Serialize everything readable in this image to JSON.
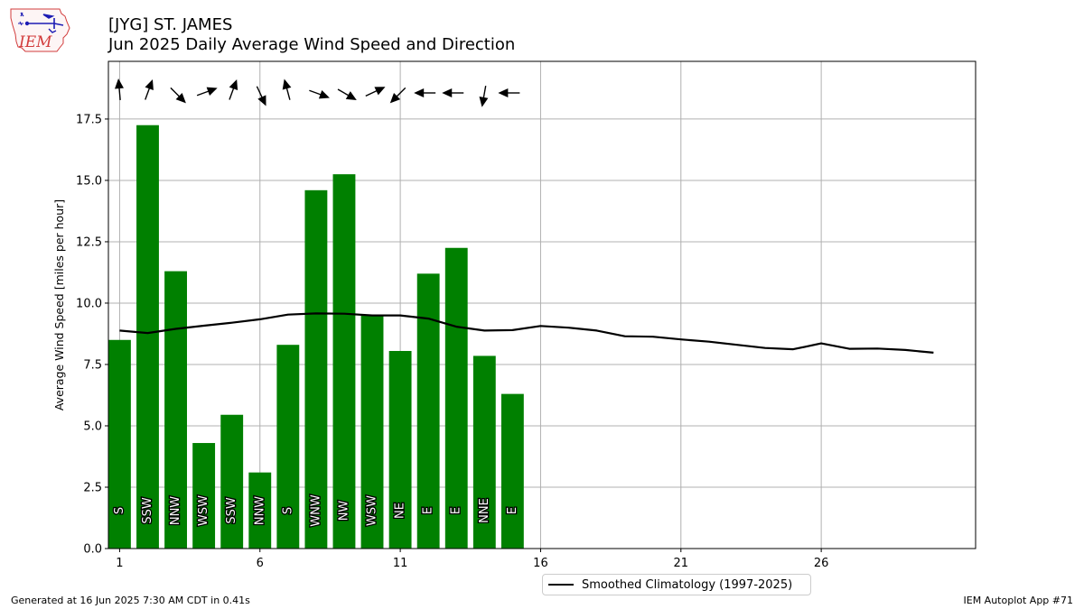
{
  "header": {
    "title_line1": "[JYG] ST. JAMES",
    "title_line2": "Jun 2025 Daily Average Wind Speed and Direction"
  },
  "logo": {
    "text": "IEM"
  },
  "footer": {
    "left": "Generated at 16 Jun 2025 7:30 AM CDT in 0.41s",
    "right": "IEM Autoplot App #71"
  },
  "legend": {
    "label": "Smoothed Climatology (1997-2025)"
  },
  "colors": {
    "bar": "#008000",
    "climatology_line": "#000000",
    "grid": "#b0b0b0"
  },
  "chart_data": {
    "type": "bar",
    "ylabel": "Average Wind Speed [miles per hour]",
    "xlabel": "",
    "xlim": [
      0.6,
      31.5
    ],
    "ylim": [
      0,
      19.85
    ],
    "xticks": [
      1,
      6,
      11,
      16,
      21,
      26
    ],
    "xtick_labels": [
      "1",
      "6",
      "11",
      "16",
      "21",
      "26"
    ],
    "yticks": [
      0,
      2.5,
      5,
      7.5,
      10,
      12.5,
      15,
      17.5
    ],
    "ytick_labels": [
      "0.0",
      "2.5",
      "5.0",
      "7.5",
      "10.0",
      "12.5",
      "15.0",
      "17.5"
    ],
    "grid": true,
    "legend_position": "below",
    "bars": {
      "days": [
        1,
        2,
        3,
        4,
        5,
        6,
        7,
        8,
        9,
        10,
        11,
        12,
        13,
        14,
        15
      ],
      "speeds": [
        8.5,
        17.25,
        11.3,
        4.3,
        5.45,
        3.1,
        8.3,
        14.6,
        15.25,
        9.5,
        8.05,
        11.2,
        12.25,
        7.85,
        6.3
      ],
      "direction_labels": [
        "S",
        "SSW",
        "NNW",
        "WSW",
        "SSW",
        "NNW",
        "S",
        "WNW",
        "NW",
        "WSW",
        "NE",
        "E",
        "E",
        "NNE",
        "E"
      ],
      "arrow_bearings_deg": [
        355,
        20,
        135,
        70,
        20,
        155,
        345,
        110,
        120,
        65,
        225,
        270,
        270,
        190,
        270
      ]
    },
    "series": [
      {
        "name": "Smoothed Climatology (1997-2025)",
        "x": [
          1,
          2,
          3,
          4,
          5,
          6,
          7,
          8,
          9,
          10,
          11,
          12,
          13,
          14,
          15,
          16,
          17,
          18,
          19,
          20,
          21,
          22,
          23,
          24,
          25,
          26,
          27,
          28,
          29,
          30
        ],
        "values": [
          8.88,
          8.78,
          8.95,
          9.08,
          9.2,
          9.34,
          9.53,
          9.58,
          9.57,
          9.5,
          9.5,
          9.37,
          9.04,
          8.88,
          8.9,
          9.07,
          9.0,
          8.88,
          8.65,
          8.63,
          8.52,
          8.43,
          8.3,
          8.17,
          8.12,
          8.36,
          8.14,
          8.15,
          8.09,
          7.98
        ]
      }
    ]
  }
}
